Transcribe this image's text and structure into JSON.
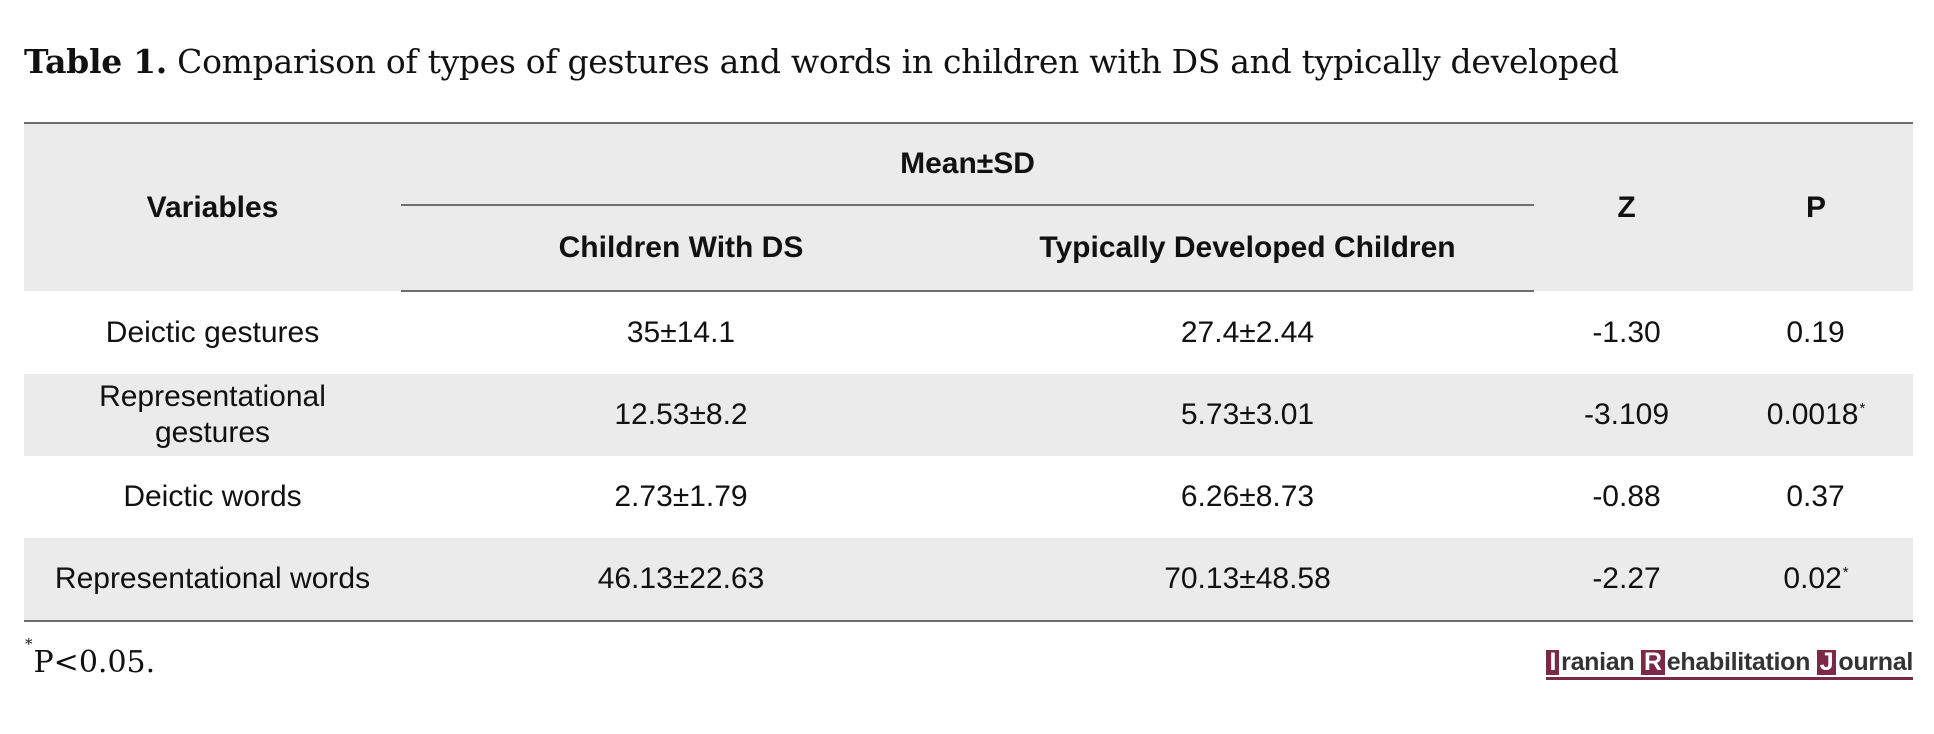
{
  "caption": {
    "label": "Table 1.",
    "text": "Comparison of types of gestures and words in children with DS and typically developed"
  },
  "table": {
    "headers": {
      "variables": "Variables",
      "mean_sd": "Mean±SD",
      "group_ds": "Children With DS",
      "group_td": "Typically Developed Children",
      "z": "Z",
      "p": "P"
    },
    "rows": [
      {
        "variable": "Deictic gestures",
        "ds": "35±14.1",
        "td": "27.4±2.44",
        "z": "-1.30",
        "p": "0.19",
        "p_mark": ""
      },
      {
        "variable": "Representational gestures",
        "ds": "12.53±8.2",
        "td": "5.73±3.01",
        "z": "-3.109",
        "p": "0.0018",
        "p_mark": "*"
      },
      {
        "variable": "Deictic words",
        "ds": "2.73±1.79",
        "td": "6.26±8.73",
        "z": "-0.88",
        "p": "0.37",
        "p_mark": ""
      },
      {
        "variable": "Representational words",
        "ds": "46.13±22.63",
        "td": "70.13±48.58",
        "z": "-2.27",
        "p": "0.02",
        "p_mark": "*"
      }
    ]
  },
  "footnote": {
    "mark": "*",
    "text": "P<0.05."
  },
  "logo": {
    "cap1": "I",
    "word1": "ranian",
    "cap2": "R",
    "word2": "ehabilitation",
    "cap3": "J",
    "word3": "ournal"
  },
  "colors": {
    "header_bg": "#ebebeb",
    "rule": "#6e6e6e",
    "logo_brand": "#7a2946"
  }
}
